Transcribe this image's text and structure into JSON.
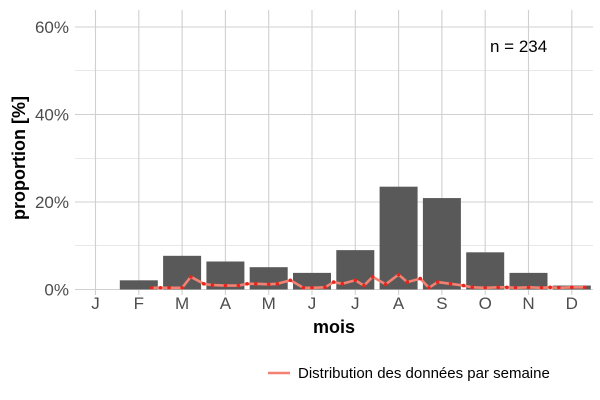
{
  "chart_data": {
    "type": "bar",
    "categories": [
      "J",
      "F",
      "M",
      "A",
      "M",
      "J",
      "J",
      "A",
      "S",
      "O",
      "N",
      "D"
    ],
    "values": [
      0,
      2.1,
      7.7,
      6.4,
      5.1,
      3.8,
      9.0,
      23.5,
      20.9,
      8.5,
      3.8,
      0.9
    ],
    "ylabel": "proportion [%]",
    "xlabel": "mois",
    "ylim": [
      0,
      64
    ],
    "yticks": [
      0,
      20,
      40,
      60
    ],
    "ytick_labels": [
      "0%",
      "20%",
      "40%",
      "60%"
    ],
    "grid": true,
    "annotation": "n = 234",
    "weekly_line": {
      "name": "Distribution des données par semaine",
      "x": [
        2.3,
        2.5,
        2.7,
        3.0,
        3.2,
        3.5,
        3.7,
        4.0,
        4.3,
        4.5,
        4.7,
        5.0,
        5.2,
        5.5,
        5.8,
        6.0,
        6.3,
        6.5,
        6.7,
        7.0,
        7.2,
        7.4,
        7.7,
        8.0,
        8.2,
        8.5,
        8.7,
        8.9,
        9.2,
        9.5,
        9.7,
        10.0,
        10.3,
        10.5,
        10.7,
        11.0,
        11.3,
        11.5,
        11.7,
        12.0,
        12.3
      ],
      "y": [
        0.4,
        0.4,
        0.4,
        0.4,
        2.9,
        1.3,
        1.0,
        0.9,
        0.9,
        1.3,
        1.3,
        1.2,
        1.3,
        2.1,
        0.4,
        0.4,
        0.5,
        1.7,
        1.3,
        2.1,
        0.9,
        2.9,
        1.2,
        3.4,
        1.7,
        2.5,
        0.4,
        1.7,
        1.3,
        0.9,
        0.5,
        0.4,
        0.5,
        0.5,
        0.4,
        0.5,
        0.4,
        0.5,
        0.4,
        0.5,
        0.5
      ]
    },
    "legend_position": "bottom-right",
    "colors": {
      "bar": "#595959",
      "line": "#f28073",
      "points": "#e8261b",
      "grid": "#d0d0d0",
      "text": "#4d4d4d"
    }
  }
}
